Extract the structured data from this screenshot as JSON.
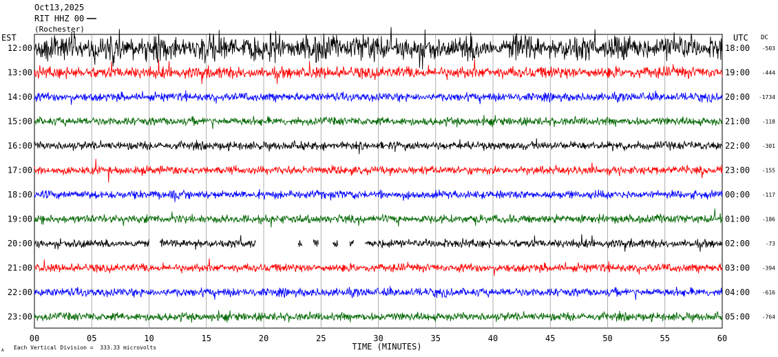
{
  "header": {
    "date": "Oct13,2025",
    "station": "RIT HHZ 00",
    "network": "(Rochester)"
  },
  "left_axis_label": "EST",
  "right_axis_label": "UTC",
  "dc_header": "DC",
  "x_axis_label": "TIME (MINUTES)",
  "footer_note": "Each Vertical Division =  333.33 microvolts",
  "footer_mark": "A",
  "colors": {
    "black": "#000000",
    "red": "#ff0000",
    "blue": "#0000ff",
    "green": "#006600",
    "grid": "#999999",
    "frame": "#000000"
  },
  "chart_data": {
    "type": "line",
    "title": "Oct13,2025 RIT HHZ 00 (Rochester)",
    "xlabel": "TIME (MINUTES)",
    "ylabel": "",
    "xlim": [
      0,
      60
    ],
    "x_ticks": [
      "00",
      "05",
      "10",
      "15",
      "20",
      "25",
      "30",
      "35",
      "40",
      "45",
      "50",
      "55",
      "60"
    ],
    "grid": true,
    "series": [
      {
        "name": "",
        "est": "12:00",
        "utc": "18:00",
        "dc": "-503",
        "color": "black",
        "amplitude": "very-high"
      },
      {
        "name": "",
        "est": "13:00",
        "utc": "19:00",
        "dc": "-444",
        "color": "red",
        "amplitude": "high"
      },
      {
        "name": "",
        "est": "14:00",
        "utc": "20:00",
        "dc": "-1734",
        "color": "blue",
        "amplitude": "medium"
      },
      {
        "name": "",
        "est": "15:00",
        "utc": "21:00",
        "dc": "-118",
        "color": "green",
        "amplitude": "medium"
      },
      {
        "name": "",
        "est": "16:00",
        "utc": "22:00",
        "dc": "-301",
        "color": "black",
        "amplitude": "medium"
      },
      {
        "name": "",
        "est": "17:00",
        "utc": "23:00",
        "dc": "-155",
        "color": "red",
        "amplitude": "medium"
      },
      {
        "name": "",
        "est": "18:00",
        "utc": "00:00",
        "dc": "-117",
        "color": "blue",
        "amplitude": "medium"
      },
      {
        "name": "",
        "est": "19:00",
        "utc": "01:00",
        "dc": "-186",
        "color": "green",
        "amplitude": "medium"
      },
      {
        "name": "",
        "est": "20:00",
        "utc": "02:00",
        "dc": "-73",
        "color": "black",
        "amplitude": "medium",
        "gaps_minutes": [
          [
            10.0,
            10.9
          ],
          [
            19.3,
            23.0
          ],
          [
            23.4,
            24.3
          ],
          [
            24.8,
            26.0
          ],
          [
            26.5,
            27.5
          ],
          [
            27.9,
            28.8
          ]
        ]
      },
      {
        "name": "",
        "est": "21:00",
        "utc": "03:00",
        "dc": "-394",
        "color": "red",
        "amplitude": "medium"
      },
      {
        "name": "",
        "est": "22:00",
        "utc": "04:00",
        "dc": "-616",
        "color": "blue",
        "amplitude": "medium"
      },
      {
        "name": "",
        "est": "23:00",
        "utc": "05:00",
        "dc": "-764",
        "color": "green",
        "amplitude": "medium"
      }
    ]
  }
}
